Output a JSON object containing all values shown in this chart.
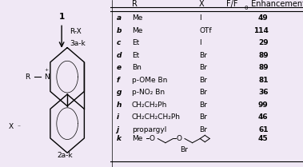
{
  "rows": [
    {
      "label": "a",
      "R": "Me",
      "X": "I",
      "value": "49"
    },
    {
      "label": "b",
      "R": "Me",
      "X": "OTf",
      "value": "114"
    },
    {
      "label": "c",
      "R": "Et",
      "X": "I",
      "value": "29"
    },
    {
      "label": "d",
      "R": "Et",
      "X": "Br",
      "value": "89"
    },
    {
      "label": "e",
      "R": "Bn",
      "X": "Br",
      "value": "89"
    },
    {
      "label": "f",
      "R": "p-OMe Bn",
      "X": "Br",
      "value": "81"
    },
    {
      "label": "g",
      "R": "p-NO₂ Bn",
      "X": "Br",
      "value": "36"
    },
    {
      "label": "h",
      "R": "CH₂CH₂Ph",
      "X": "Br",
      "value": "99"
    },
    {
      "label": "i",
      "R": "CH₂CH₂CH₂Ph",
      "X": "Br",
      "value": "46"
    },
    {
      "label": "j",
      "R": "propargyl",
      "X": "Br",
      "value": "61"
    }
  ],
  "row_k": {
    "label": "k",
    "value": "45"
  },
  "bg_color": "#f0e8f5",
  "table_bg": "#ffffff",
  "font_size": 6.5,
  "header_font_size": 7.0
}
